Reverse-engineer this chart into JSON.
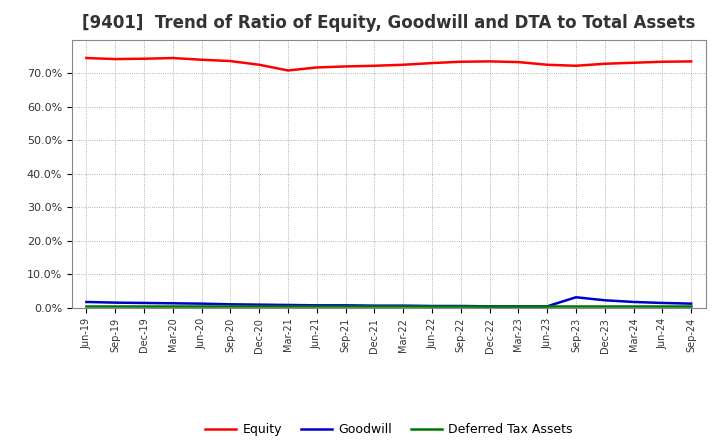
{
  "title": "[9401]  Trend of Ratio of Equity, Goodwill and DTA to Total Assets",
  "x_labels": [
    "Jun-19",
    "Sep-19",
    "Dec-19",
    "Mar-20",
    "Jun-20",
    "Sep-20",
    "Dec-20",
    "Mar-21",
    "Jun-21",
    "Sep-21",
    "Dec-21",
    "Mar-22",
    "Jun-22",
    "Sep-22",
    "Dec-22",
    "Mar-23",
    "Jun-23",
    "Sep-23",
    "Dec-23",
    "Mar-24",
    "Jun-24",
    "Sep-24"
  ],
  "equity": [
    74.5,
    74.2,
    74.3,
    74.5,
    74.0,
    73.6,
    72.5,
    70.8,
    71.7,
    72.0,
    72.2,
    72.5,
    73.0,
    73.4,
    73.5,
    73.3,
    72.5,
    72.2,
    72.8,
    73.1,
    73.4,
    73.5
  ],
  "goodwill": [
    1.8,
    1.6,
    1.5,
    1.4,
    1.3,
    1.1,
    1.0,
    0.9,
    0.8,
    0.8,
    0.7,
    0.7,
    0.6,
    0.6,
    0.5,
    0.5,
    0.5,
    3.2,
    2.3,
    1.8,
    1.5,
    1.3
  ],
  "dta": [
    0.7,
    0.7,
    0.7,
    0.7,
    0.7,
    0.7,
    0.7,
    0.7,
    0.7,
    0.7,
    0.7,
    0.7,
    0.7,
    0.7,
    0.7,
    0.7,
    0.7,
    0.7,
    0.7,
    0.7,
    0.7,
    0.7
  ],
  "equity_color": "#ff0000",
  "goodwill_color": "#0000cc",
  "dta_color": "#007700",
  "ylim": [
    0,
    80
  ],
  "yticks": [
    0,
    10,
    20,
    30,
    40,
    50,
    60,
    70
  ],
  "ytick_labels": [
    "0.0%",
    "10.0%",
    "20.0%",
    "30.0%",
    "40.0%",
    "50.0%",
    "60.0%",
    "70.0%"
  ],
  "bg_color": "#ffffff",
  "grid_color": "#999999",
  "title_fontsize": 12,
  "legend_labels": [
    "Equity",
    "Goodwill",
    "Deferred Tax Assets"
  ]
}
